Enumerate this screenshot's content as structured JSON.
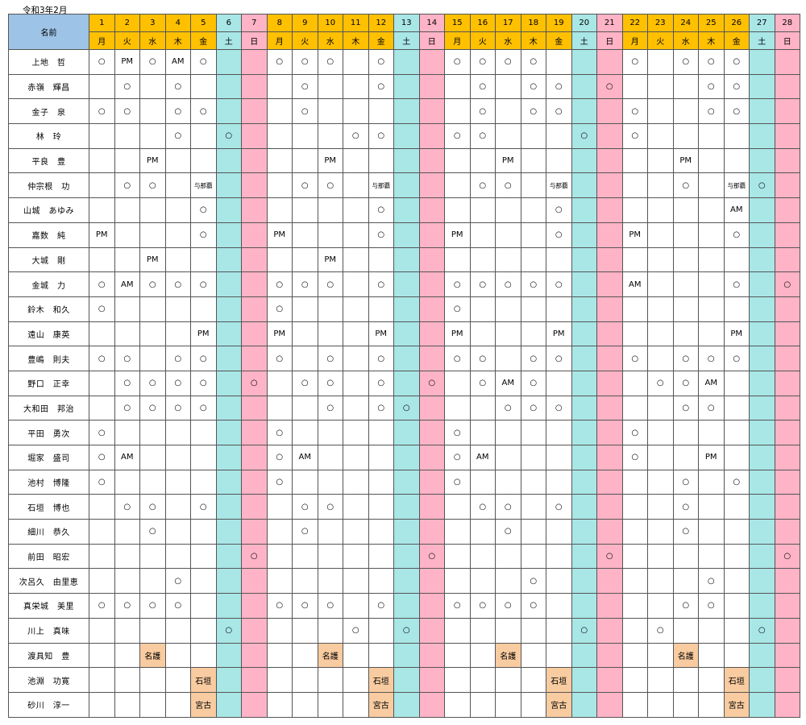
{
  "title": "令和3年2月",
  "name_header": "名前",
  "colors": {
    "header": "#ffc000",
    "name_header": "#9dc3e6",
    "saturday": "#a9e6e6",
    "sunday": "#ffb3c6",
    "venue": "#f8cba0"
  },
  "days": [
    {
      "d": "1",
      "w": "月"
    },
    {
      "d": "2",
      "w": "火"
    },
    {
      "d": "3",
      "w": "水"
    },
    {
      "d": "4",
      "w": "木"
    },
    {
      "d": "5",
      "w": "金"
    },
    {
      "d": "6",
      "w": "土"
    },
    {
      "d": "7",
      "w": "日"
    },
    {
      "d": "8",
      "w": "月"
    },
    {
      "d": "9",
      "w": "火"
    },
    {
      "d": "10",
      "w": "水"
    },
    {
      "d": "11",
      "w": "木"
    },
    {
      "d": "12",
      "w": "金"
    },
    {
      "d": "13",
      "w": "土"
    },
    {
      "d": "14",
      "w": "日"
    },
    {
      "d": "15",
      "w": "月"
    },
    {
      "d": "16",
      "w": "火"
    },
    {
      "d": "17",
      "w": "水"
    },
    {
      "d": "18",
      "w": "木"
    },
    {
      "d": "19",
      "w": "金"
    },
    {
      "d": "20",
      "w": "土"
    },
    {
      "d": "21",
      "w": "日"
    },
    {
      "d": "22",
      "w": "月"
    },
    {
      "d": "23",
      "w": "火"
    },
    {
      "d": "24",
      "w": "水"
    },
    {
      "d": "25",
      "w": "木"
    },
    {
      "d": "26",
      "w": "金"
    },
    {
      "d": "27",
      "w": "土"
    },
    {
      "d": "28",
      "w": "日"
    }
  ],
  "rows": [
    {
      "name": "上地　哲",
      "cells": [
        "○",
        "PM",
        "○",
        "AM",
        "○",
        "",
        "",
        "○",
        "○",
        "○",
        "",
        "○",
        "",
        "",
        "○",
        "○",
        "○",
        "○",
        "",
        "",
        "",
        "○",
        "",
        "○",
        "○",
        "○",
        "",
        ""
      ]
    },
    {
      "name": "赤嶺　輝昌",
      "cells": [
        "",
        "○",
        "",
        "○",
        "",
        "",
        "",
        "",
        "○",
        "",
        "",
        "○",
        "",
        "",
        "",
        "○",
        "",
        "○",
        "○",
        "",
        "○",
        "",
        "",
        "",
        "○",
        "○",
        "",
        ""
      ]
    },
    {
      "name": "金子　泉",
      "cells": [
        "○",
        "○",
        "",
        "○",
        "○",
        "",
        "",
        "",
        "○",
        "",
        "",
        "",
        "",
        "",
        "",
        "○",
        "",
        "○",
        "○",
        "",
        "",
        "○",
        "",
        "",
        "○",
        "○",
        "",
        ""
      ]
    },
    {
      "name": "林　玲",
      "cells": [
        "",
        "",
        "",
        "○",
        "",
        "○",
        "",
        "",
        "",
        "",
        "○",
        "○",
        "",
        "",
        "○",
        "○",
        "",
        "",
        "",
        "○",
        "",
        "○",
        "",
        "",
        "",
        "",
        "",
        ""
      ]
    },
    {
      "name": "平良　豊",
      "cells": [
        "",
        "",
        "PM",
        "",
        "",
        "",
        "",
        "",
        "",
        "PM",
        "",
        "",
        "",
        "",
        "",
        "",
        "PM",
        "",
        "",
        "",
        "",
        "",
        "",
        "PM",
        "",
        "",
        "",
        ""
      ]
    },
    {
      "name": "仲宗根　功",
      "cells": [
        "",
        "○",
        "○",
        "",
        "与那覇",
        "",
        "",
        "",
        "○",
        "○",
        "",
        "与那覇",
        "",
        "",
        "",
        "○",
        "○",
        "",
        "与那覇",
        "",
        "",
        "",
        "",
        "○",
        "",
        "与那覇",
        "○",
        ""
      ]
    },
    {
      "name": "山城　あゆみ",
      "cells": [
        "",
        "",
        "",
        "",
        "○",
        "",
        "",
        "",
        "",
        "",
        "",
        "○",
        "",
        "",
        "",
        "",
        "",
        "",
        "○",
        "",
        "",
        "",
        "",
        "",
        "",
        "AM",
        "",
        ""
      ]
    },
    {
      "name": "嘉数　純",
      "cells": [
        "PM",
        "",
        "",
        "",
        "○",
        "",
        "",
        "PM",
        "",
        "",
        "",
        "○",
        "",
        "",
        "PM",
        "",
        "",
        "",
        "○",
        "",
        "",
        "PM",
        "",
        "",
        "",
        "○",
        "",
        ""
      ]
    },
    {
      "name": "大城　剛",
      "cells": [
        "",
        "",
        "PM",
        "",
        "",
        "",
        "",
        "",
        "",
        "PM",
        "",
        "",
        "",
        "",
        "",
        "",
        "",
        "",
        "",
        "",
        "",
        "",
        "",
        "",
        "",
        "",
        "",
        ""
      ]
    },
    {
      "name": "金城　力",
      "cells": [
        "○",
        "AM",
        "○",
        "○",
        "○",
        "",
        "",
        "○",
        "○",
        "○",
        "",
        "○",
        "",
        "",
        "○",
        "○",
        "○",
        "○",
        "○",
        "",
        "",
        "AM",
        "",
        "",
        "",
        "○",
        "",
        "○"
      ]
    },
    {
      "name": "鈴木　和久",
      "cells": [
        "○",
        "",
        "",
        "",
        "",
        "",
        "",
        "○",
        "",
        "",
        "",
        "",
        "",
        "",
        "○",
        "",
        "",
        "",
        "",
        "",
        "",
        "",
        "",
        "",
        "",
        "",
        "",
        ""
      ]
    },
    {
      "name": "遠山　康英",
      "cells": [
        "",
        "",
        "",
        "",
        "PM",
        "",
        "",
        "PM",
        "",
        "",
        "",
        "PM",
        "",
        "",
        "PM",
        "",
        "",
        "",
        "PM",
        "",
        "",
        "",
        "",
        "",
        "",
        "PM",
        "",
        ""
      ]
    },
    {
      "name": "豊嶋　則夫",
      "cells": [
        "○",
        "○",
        "",
        "○",
        "○",
        "",
        "",
        "○",
        "",
        "○",
        "",
        "○",
        "",
        "",
        "○",
        "○",
        "",
        "○",
        "○",
        "",
        "",
        "○",
        "",
        "○",
        "○",
        "○",
        "",
        ""
      ]
    },
    {
      "name": "野口　正幸",
      "cells": [
        "",
        "○",
        "○",
        "○",
        "○",
        "",
        "○",
        "",
        "○",
        "○",
        "",
        "○",
        "",
        "○",
        "",
        "○",
        "AM",
        "○",
        "",
        "",
        "",
        "",
        "○",
        "○",
        "AM",
        "",
        "",
        ""
      ]
    },
    {
      "name": "大和田　邦治",
      "cells": [
        "",
        "○",
        "○",
        "○",
        "○",
        "",
        "",
        "",
        "",
        "○",
        "",
        "○",
        "○",
        "",
        "",
        "",
        "○",
        "○",
        "○",
        "",
        "",
        "",
        "",
        "○",
        "○",
        "",
        "",
        ""
      ]
    },
    {
      "name": "平田　勇次",
      "cells": [
        "○",
        "",
        "",
        "",
        "",
        "",
        "",
        "○",
        "",
        "",
        "",
        "",
        "",
        "",
        "○",
        "",
        "",
        "",
        "",
        "",
        "",
        "○",
        "",
        "",
        "",
        "",
        "",
        ""
      ]
    },
    {
      "name": "堀家　盛司",
      "cells": [
        "○",
        "AM",
        "",
        "",
        "",
        "",
        "",
        "○",
        "AM",
        "",
        "",
        "",
        "",
        "",
        "○",
        "AM",
        "",
        "",
        "",
        "",
        "",
        "○",
        "",
        "",
        "PM",
        "",
        "",
        ""
      ]
    },
    {
      "name": "池村　博隆",
      "cells": [
        "○",
        "",
        "",
        "",
        "",
        "",
        "",
        "○",
        "",
        "",
        "",
        "",
        "",
        "",
        "○",
        "",
        "",
        "",
        "",
        "",
        "",
        "",
        "",
        "○",
        "",
        "○",
        "",
        ""
      ]
    },
    {
      "name": "石垣　博也",
      "cells": [
        "",
        "○",
        "○",
        "",
        "○",
        "",
        "",
        "",
        "○",
        "○",
        "",
        "",
        "",
        "",
        "",
        "○",
        "○",
        "",
        "○",
        "",
        "",
        "",
        "",
        "○",
        "",
        "",
        "",
        ""
      ]
    },
    {
      "name": "細川　恭久",
      "cells": [
        "",
        "",
        "○",
        "",
        "",
        "",
        "",
        "",
        "○",
        "",
        "",
        "",
        "",
        "",
        "",
        "",
        "○",
        "",
        "",
        "",
        "",
        "",
        "",
        "○",
        "",
        "",
        "",
        ""
      ]
    },
    {
      "name": "前田　昭宏",
      "cells": [
        "",
        "",
        "",
        "",
        "",
        "",
        "○",
        "",
        "",
        "",
        "",
        "",
        "",
        "○",
        "",
        "",
        "",
        "",
        "",
        "",
        "○",
        "",
        "",
        "",
        "",
        "",
        "",
        "○"
      ]
    },
    {
      "name": "次呂久　由里恵",
      "cells": [
        "",
        "",
        "",
        "○",
        "",
        "",
        "",
        "",
        "",
        "",
        "",
        "",
        "",
        "",
        "",
        "",
        "",
        "○",
        "",
        "",
        "",
        "",
        "",
        "",
        "○",
        "",
        "",
        ""
      ]
    },
    {
      "name": "真栄城　美里",
      "cells": [
        "○",
        "○",
        "○",
        "○",
        "",
        "",
        "",
        "○",
        "○",
        "○",
        "",
        "○",
        "",
        "",
        "○",
        "○",
        "○",
        "○",
        "",
        "",
        "",
        "",
        "",
        "○",
        "○",
        "",
        "",
        ""
      ]
    },
    {
      "name": "川上　真味",
      "cells": [
        "",
        "",
        "",
        "",
        "",
        "○",
        "",
        "",
        "",
        "",
        "○",
        "",
        "○",
        "",
        "",
        "",
        "",
        "",
        "",
        "○",
        "",
        "",
        "○",
        "",
        "",
        "",
        "○",
        ""
      ]
    },
    {
      "name": "渡具知　豊",
      "cells": [
        "",
        "",
        "名護",
        "",
        "",
        "",
        "",
        "",
        "",
        "名護",
        "",
        "",
        "",
        "",
        "",
        "",
        "名護",
        "",
        "",
        "",
        "",
        "",
        "",
        "名護",
        "",
        "",
        "",
        ""
      ]
    },
    {
      "name": "池淵　功寛",
      "cells": [
        "",
        "",
        "",
        "",
        "石垣",
        "",
        "",
        "",
        "",
        "",
        "",
        "石垣",
        "",
        "",
        "",
        "",
        "",
        "",
        "石垣",
        "",
        "",
        "",
        "",
        "",
        "",
        "石垣",
        "",
        ""
      ]
    },
    {
      "name": "砂川　淳一",
      "cells": [
        "",
        "",
        "",
        "",
        "宮古",
        "",
        "",
        "",
        "",
        "",
        "",
        "宮古",
        "",
        "",
        "",
        "",
        "",
        "",
        "宮古",
        "",
        "",
        "",
        "",
        "",
        "",
        "宮古",
        "",
        ""
      ]
    }
  ]
}
